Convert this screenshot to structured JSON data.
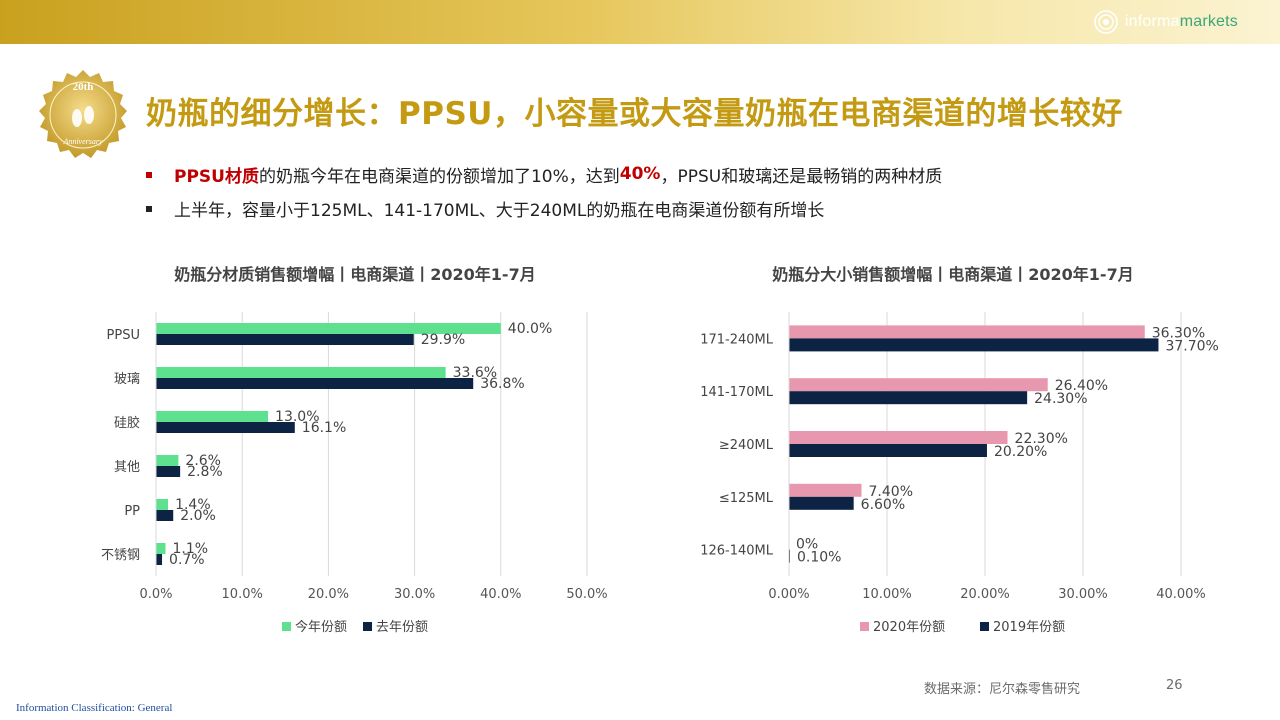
{
  "header": {
    "logo_text_a": "informa",
    "logo_text_b": "markets",
    "badge_top": "20th",
    "badge_bottom": "Anniversary"
  },
  "title": "奶瓶的细分增长：PPSU，小容量或大容量奶瓶在电商渠道的增长较好",
  "bullets": [
    {
      "highlight": "PPSU材质",
      "text_a": "的奶瓶今年在电商渠道的份额增加了10%，达到",
      "highlight2": "40%",
      "text_b": "，PPSU和玻璃还是最畅销的两种材质"
    },
    {
      "text": "上半年，容量小于125ML、141-170ML、大于240ML的奶瓶在电商渠道份额有所增长"
    }
  ],
  "colors": {
    "gold": "#c39a12",
    "green": "#5de18f",
    "navy": "#0c2344",
    "pink": "#e898ae",
    "red": "#c00000"
  },
  "chart_data": [
    {
      "type": "bar",
      "orientation": "horizontal",
      "title": "奶瓶分材质销售额增幅丨电商渠道丨2020年1-7月",
      "categories": [
        "PPSU",
        "玻璃",
        "硅胶",
        "其他",
        "PP",
        "不锈钢"
      ],
      "series": [
        {
          "name": "今年份额",
          "color": "#5de18f",
          "values": [
            40.0,
            33.6,
            13.0,
            2.6,
            1.4,
            1.1
          ],
          "labels": [
            "40.0%",
            "33.6%",
            "13.0%",
            "2.6%",
            "1.4%",
            "1.1%"
          ]
        },
        {
          "name": "去年份额",
          "color": "#0c2344",
          "values": [
            29.9,
            36.8,
            16.1,
            2.8,
            2.0,
            0.7
          ],
          "labels": [
            "29.9%",
            "36.8%",
            "16.1%",
            "2.8%",
            "2.0%",
            "0.7%"
          ]
        }
      ],
      "xlim": [
        0,
        50
      ],
      "xticks": [
        "0.0%",
        "10.0%",
        "20.0%",
        "30.0%",
        "40.0%",
        "50.0%"
      ],
      "grid": true,
      "legend": "bottom"
    },
    {
      "type": "bar",
      "orientation": "horizontal",
      "title": "奶瓶分大小销售额增幅丨电商渠道丨2020年1-7月",
      "categories": [
        "171-240ML",
        "141-170ML",
        "≥240ML",
        "≤125ML",
        "126-140ML"
      ],
      "series": [
        {
          "name": "2020年份额",
          "color": "#e898ae",
          "values": [
            36.3,
            26.4,
            22.3,
            7.4,
            0
          ],
          "labels": [
            "36.30%",
            "26.40%",
            "22.30%",
            "7.40%",
            "0%"
          ]
        },
        {
          "name": "2019年份额",
          "color": "#0c2344",
          "values": [
            37.7,
            24.3,
            20.2,
            6.6,
            0.1
          ],
          "labels": [
            "37.70%",
            "24.30%",
            "20.20%",
            "6.60%",
            "0.10%"
          ]
        }
      ],
      "xlim": [
        0,
        40
      ],
      "xticks": [
        "0.00%",
        "10.00%",
        "20.00%",
        "30.00%",
        "40.00%"
      ],
      "grid": true,
      "legend": "bottom"
    }
  ],
  "footer": {
    "source": "数据来源：尼尔森零售研究",
    "page": "26",
    "classification": "Information Classification: General"
  }
}
